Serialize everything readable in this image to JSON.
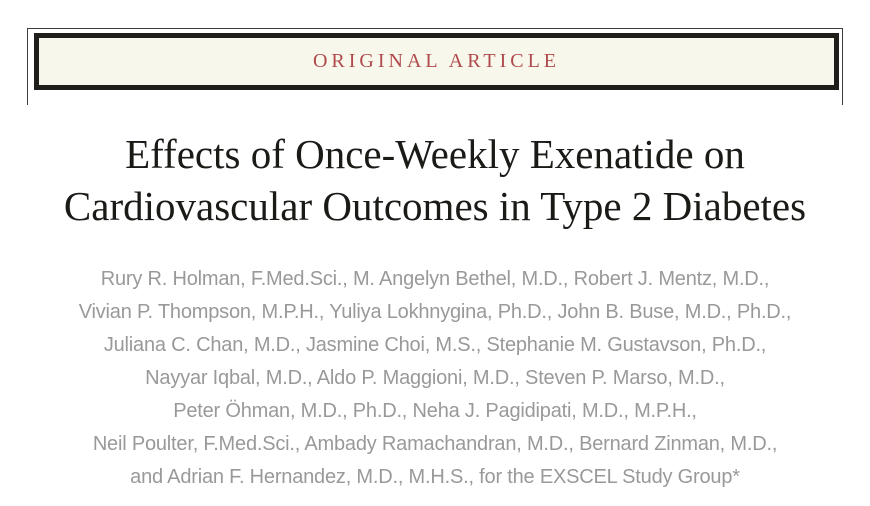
{
  "banner": {
    "label": "ORIGINAL ARTICLE",
    "text_color": "#b04a4c",
    "box_background": "#f8f7ec",
    "thick_border_color": "#201e1b",
    "thin_rule_color": "#3c3c3c"
  },
  "article": {
    "title_line1": "Effects of Once-Weekly Exenatide on",
    "title_line2": "Cardiovascular Outcomes in Type 2 Diabetes",
    "title_color": "#1b1a17"
  },
  "authors": {
    "color": "#9a999a",
    "lines": [
      "Rury R. Holman, F.Med.Sci., M. Angelyn Bethel, M.D., Robert J. Mentz, M.D.,",
      "Vivian P. Thompson, M.P.H., Yuliya Lokhnygina, Ph.D., John B. Buse, M.D., Ph.D.,",
      "Juliana C. Chan, M.D., Jasmine Choi, M.S., Stephanie M. Gustavson, Ph.D.,",
      "Nayyar Iqbal, M.D., Aldo P. Maggioni, M.D., Steven P. Marso, M.D.,",
      "Peter Öhman, M.D., Ph.D., Neha J. Pagidipati, M.D., M.P.H.,",
      "Neil Poulter, F.Med.Sci., Ambady Ramachandran, M.D., Bernard Zinman, M.D.,",
      "and Adrian F. Hernandez, M.D., M.H.S., for the EXSCEL Study Group*"
    ]
  }
}
